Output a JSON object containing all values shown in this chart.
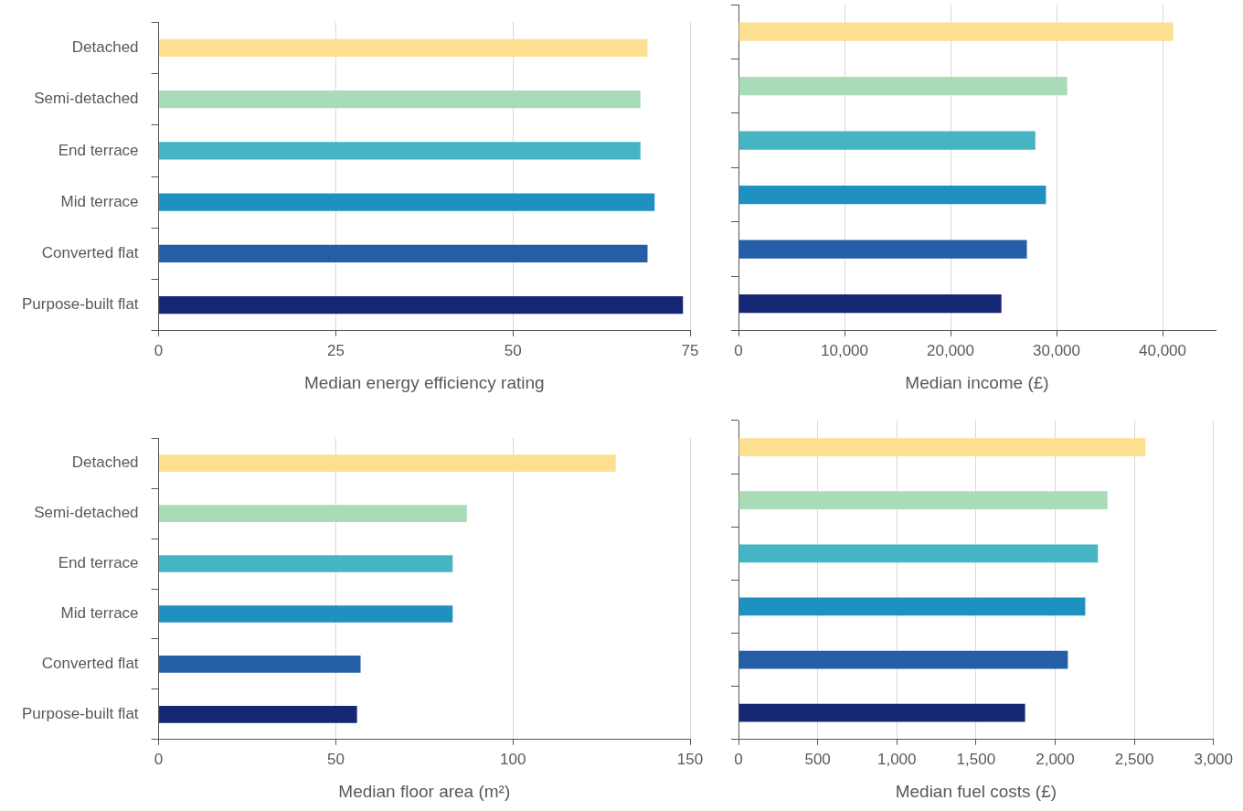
{
  "chart_data": [
    {
      "type": "bar",
      "orientation": "horizontal",
      "xlabel": "Median energy efficiency rating",
      "categories": [
        "Detached",
        "Semi-detached",
        "End terrace",
        "Mid terrace",
        "Converted flat",
        "Purpose-built flat"
      ],
      "values": [
        69,
        68,
        68,
        70,
        69,
        74
      ],
      "colors": [
        "#fde08f",
        "#a9dbb8",
        "#45b5c4",
        "#1f91c1",
        "#235ea6",
        "#152672"
      ],
      "xlim": [
        0,
        75
      ],
      "xticks": [
        0,
        25,
        50,
        75
      ],
      "grid": "x"
    },
    {
      "type": "bar",
      "orientation": "horizontal",
      "xlabel": "Median income (£)",
      "categories": [
        null,
        null,
        null,
        null,
        null,
        null
      ],
      "values": [
        41000,
        31000,
        28000,
        29000,
        27200,
        24800
      ],
      "colors": [
        "#fde08f",
        "#a9dbb8",
        "#45b5c4",
        "#1f91c1",
        "#235ea6",
        "#152672"
      ],
      "xlim": [
        0,
        45000
      ],
      "xticks": [
        {
          "value": 0,
          "label": "0"
        },
        {
          "value": 10000,
          "label": "10,000"
        },
        {
          "value": 20000,
          "label": "20,000"
        },
        {
          "value": 30000,
          "label": "30,000"
        },
        {
          "value": 40000,
          "label": "40,000"
        }
      ],
      "grid": "x",
      "tick_labels": "x"
    },
    {
      "type": "bar",
      "orientation": "horizontal",
      "xlabel": "Median floor area (m²)",
      "categories": [
        "Detached",
        "Semi-detached",
        "End terrace",
        "Mid terrace",
        "Converted flat",
        "Purpose-built flat"
      ],
      "values": [
        129,
        87,
        83,
        83,
        57,
        56
      ],
      "colors": [
        "#fde08f",
        "#a9dbb8",
        "#45b5c4",
        "#1f91c1",
        "#235ea6",
        "#152672"
      ],
      "xlim": [
        0,
        150
      ],
      "xticks": [
        0,
        50,
        100,
        150
      ],
      "grid": "x"
    },
    {
      "type": "bar",
      "orientation": "horizontal",
      "xlabel": "Median fuel costs (£)",
      "categories": [
        null,
        null,
        null,
        null,
        null,
        null
      ],
      "values": [
        2570,
        2330,
        2270,
        2190,
        2080,
        1810
      ],
      "colors": [
        "#fde08f",
        "#a9dbb8",
        "#45b5c4",
        "#1f91c1",
        "#235ea6",
        "#152672"
      ],
      "xlim": [
        0,
        3000
      ],
      "xticks": [
        0,
        {
          "value": 500,
          "label": "500"
        },
        {
          "value": 1000,
          "label": "1,000"
        },
        {
          "value": 1500,
          "label": "1,500"
        },
        {
          "value": 2000,
          "label": "2,000"
        },
        {
          "value": 2500,
          "label": "2,500"
        },
        {
          "value": 3000,
          "label": "3,000"
        }
      ],
      "grid": "x",
      "tick_labels": "x"
    }
  ]
}
